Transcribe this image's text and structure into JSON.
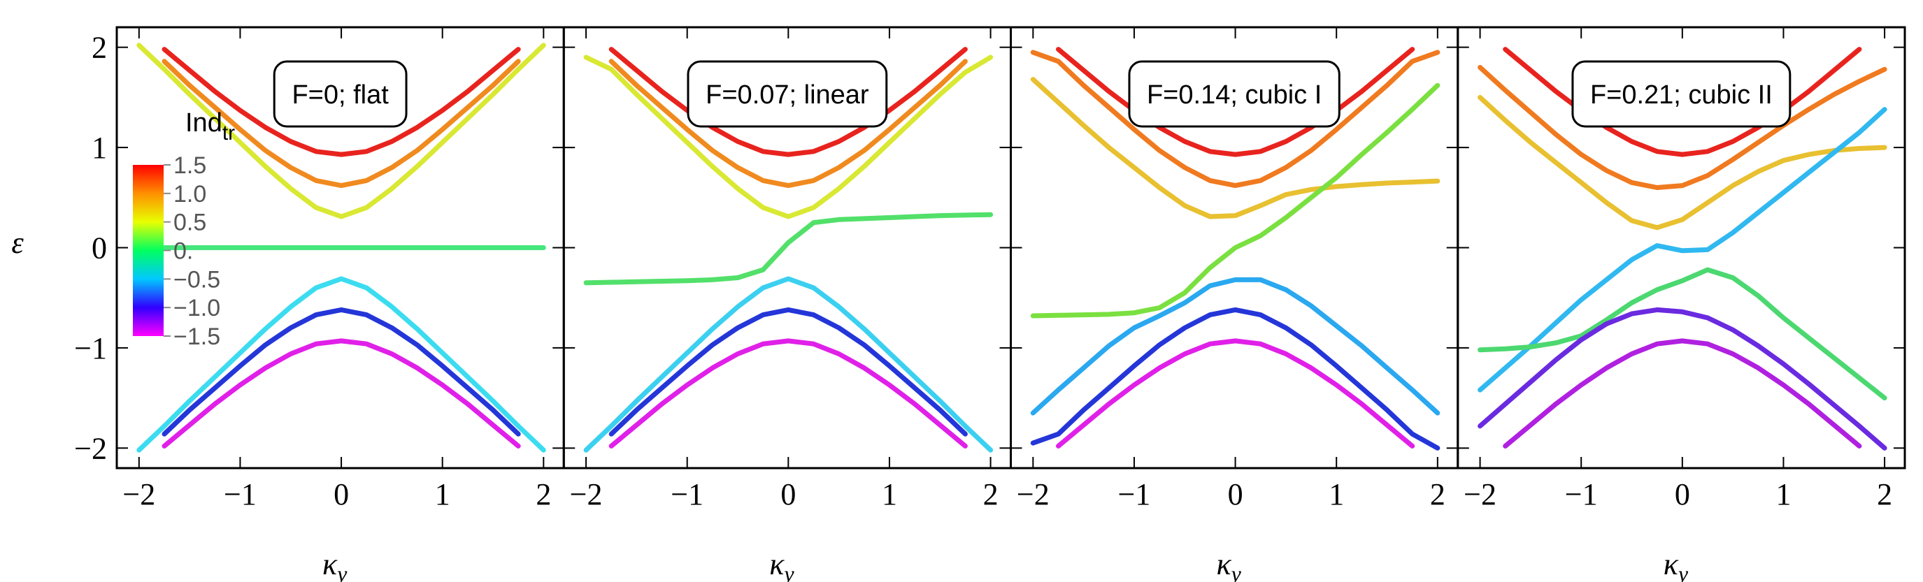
{
  "chart_data": [
    {
      "type": "line",
      "annotation": "F=0; flat",
      "xlabel": "κ",
      "xlabel_sub": "y",
      "ylabel": "ε",
      "xlim": [
        -2.22,
        2.2
      ],
      "ylim": [
        -2.2,
        2.2
      ],
      "xticks": [
        {
          "value": -2,
          "label": "−2"
        },
        {
          "value": -1,
          "label": "−1"
        },
        0,
        1,
        2
      ],
      "yticks": [
        {
          "value": -2,
          "label": "−2"
        },
        {
          "value": -1,
          "label": "−1"
        },
        0,
        1,
        2
      ],
      "ytick_labels": true,
      "x": [
        -2,
        -1.75,
        -1.5,
        -1.25,
        -1,
        -0.75,
        -0.5,
        -0.25,
        0,
        0.25,
        0.5,
        0.75,
        1,
        1.25,
        1.5,
        1.75,
        2
      ],
      "series": [
        {
          "color": "#e8231e",
          "values": [
            null,
            1.98,
            1.77,
            1.56,
            1.37,
            1.2,
            1.06,
            0.96,
            0.93,
            0.96,
            1.06,
            1.2,
            1.37,
            1.56,
            1.77,
            1.98,
            null
          ]
        },
        {
          "color": "#f08a1f",
          "values": [
            null,
            1.86,
            1.62,
            1.4,
            1.18,
            0.97,
            0.8,
            0.67,
            0.62,
            0.67,
            0.8,
            0.97,
            1.18,
            1.4,
            1.62,
            1.86,
            null
          ]
        },
        {
          "color": "#d9e832",
          "values": [
            2.02,
            1.78,
            1.53,
            1.29,
            1.05,
            0.81,
            0.59,
            0.4,
            0.31,
            0.4,
            0.59,
            0.81,
            1.05,
            1.29,
            1.53,
            1.78,
            2.02
          ]
        },
        {
          "color": "#46e67c",
          "values": [
            0,
            0,
            0,
            0,
            0,
            0,
            0,
            0,
            0,
            0,
            0,
            0,
            0,
            0,
            0,
            0,
            0
          ]
        },
        {
          "color": "#3cdcf0",
          "values": [
            -2.02,
            -1.78,
            -1.53,
            -1.29,
            -1.05,
            -0.81,
            -0.59,
            -0.4,
            -0.31,
            -0.4,
            -0.59,
            -0.81,
            -1.05,
            -1.29,
            -1.53,
            -1.78,
            -2.02
          ]
        },
        {
          "color": "#2436d8",
          "values": [
            null,
            -1.86,
            -1.62,
            -1.4,
            -1.18,
            -0.97,
            -0.8,
            -0.67,
            -0.62,
            -0.67,
            -0.8,
            -0.97,
            -1.18,
            -1.4,
            -1.62,
            -1.86,
            null
          ]
        },
        {
          "color": "#e020e8",
          "values": [
            null,
            -1.98,
            -1.77,
            -1.56,
            -1.37,
            -1.2,
            -1.06,
            -0.96,
            -0.93,
            -0.96,
            -1.06,
            -1.2,
            -1.37,
            -1.56,
            -1.77,
            -1.98,
            null
          ]
        }
      ],
      "colorbar": {
        "label": "Ind",
        "label_sub": "tr",
        "lim": [
          -1.5,
          1.5
        ],
        "colors": [
          "#ff00ff",
          "#3000ff",
          "#00c8ff",
          "#00ff60",
          "#e8ff00",
          "#ff9000",
          "#ff0000"
        ],
        "ticks": [
          {
            "value": 1.5,
            "label": "1.5"
          },
          {
            "value": 1,
            "label": "1.0"
          },
          {
            "value": 0.5,
            "label": "0.5"
          },
          {
            "value": 0,
            "label": "0."
          },
          {
            "value": -0.5,
            "label": "−0.5"
          },
          {
            "value": -1,
            "label": "−1.0"
          },
          {
            "value": -1.5,
            "label": "−1.5"
          }
        ]
      }
    },
    {
      "type": "line",
      "annotation": "F=0.07; linear",
      "xlabel": "κ",
      "xlabel_sub": "y",
      "xlim": [
        -2.22,
        2.2
      ],
      "ylim": [
        -2.2,
        2.2
      ],
      "xticks": [
        {
          "value": -2,
          "label": "−2"
        },
        {
          "value": -1,
          "label": "−1"
        },
        0,
        1,
        2
      ],
      "yticks": [
        -2,
        -1,
        0,
        1,
        2
      ],
      "ytick_labels": false,
      "x": [
        -2,
        -1.75,
        -1.5,
        -1.25,
        -1,
        -0.75,
        -0.5,
        -0.25,
        0,
        0.25,
        0.5,
        0.75,
        1,
        1.25,
        1.5,
        1.75,
        2
      ],
      "series": [
        {
          "color": "#e8231e",
          "values": [
            null,
            1.98,
            1.77,
            1.56,
            1.37,
            1.2,
            1.06,
            0.96,
            0.93,
            0.96,
            1.06,
            1.2,
            1.37,
            1.56,
            1.77,
            1.98,
            null
          ]
        },
        {
          "color": "#f08a1f",
          "values": [
            null,
            1.86,
            1.62,
            1.4,
            1.18,
            0.97,
            0.8,
            0.67,
            0.62,
            0.67,
            0.8,
            0.97,
            1.18,
            1.4,
            1.62,
            1.86,
            null
          ]
        },
        {
          "color": "#d9e832",
          "values": [
            1.9,
            1.78,
            1.53,
            1.29,
            1.05,
            0.81,
            0.59,
            0.4,
            0.31,
            0.4,
            0.59,
            0.81,
            1.05,
            1.29,
            1.53,
            1.75,
            1.9
          ]
        },
        {
          "color": "#52e06a",
          "values": [
            -0.35,
            -0.345,
            -0.34,
            -0.335,
            -0.33,
            -0.32,
            -0.3,
            -0.22,
            0.05,
            0.25,
            0.28,
            0.29,
            0.3,
            0.31,
            0.32,
            0.325,
            0.33
          ]
        },
        {
          "color": "#3cd0f0",
          "values": [
            -2.02,
            -1.78,
            -1.53,
            -1.29,
            -1.05,
            -0.81,
            -0.59,
            -0.4,
            -0.31,
            -0.4,
            -0.59,
            -0.81,
            -1.05,
            -1.29,
            -1.53,
            -1.78,
            -2.02
          ]
        },
        {
          "color": "#2436d8",
          "values": [
            null,
            -1.86,
            -1.62,
            -1.4,
            -1.18,
            -0.97,
            -0.8,
            -0.67,
            -0.62,
            -0.67,
            -0.8,
            -0.97,
            -1.18,
            -1.4,
            -1.62,
            -1.86,
            null
          ]
        },
        {
          "color": "#e020e8",
          "values": [
            null,
            -1.98,
            -1.77,
            -1.56,
            -1.37,
            -1.2,
            -1.06,
            -0.96,
            -0.93,
            -0.96,
            -1.06,
            -1.2,
            -1.37,
            -1.56,
            -1.77,
            -1.98,
            null
          ]
        }
      ]
    },
    {
      "type": "line",
      "annotation": "F=0.14; cubic I",
      "xlabel": "κ",
      "xlabel_sub": "y",
      "xlim": [
        -2.22,
        2.2
      ],
      "ylim": [
        -2.2,
        2.2
      ],
      "xticks": [
        {
          "value": -2,
          "label": "−2"
        },
        {
          "value": -1,
          "label": "−1"
        },
        0,
        1,
        2
      ],
      "yticks": [
        -2,
        -1,
        0,
        1,
        2
      ],
      "ytick_labels": false,
      "x": [
        -2,
        -1.75,
        -1.5,
        -1.25,
        -1,
        -0.75,
        -0.5,
        -0.25,
        0,
        0.25,
        0.5,
        0.75,
        1,
        1.25,
        1.5,
        1.75,
        2
      ],
      "series": [
        {
          "color": "#e8231e",
          "values": [
            null,
            1.98,
            1.77,
            1.56,
            1.37,
            1.2,
            1.06,
            0.96,
            0.93,
            0.96,
            1.06,
            1.2,
            1.37,
            1.56,
            1.77,
            1.98,
            null
          ]
        },
        {
          "color": "#f07a1f",
          "values": [
            1.95,
            1.86,
            1.62,
            1.4,
            1.18,
            0.97,
            0.8,
            0.67,
            0.62,
            0.67,
            0.8,
            0.97,
            1.18,
            1.4,
            1.62,
            1.86,
            1.95
          ]
        },
        {
          "color": "#e8c030",
          "values": [
            1.68,
            1.45,
            1.22,
            1.0,
            0.8,
            0.6,
            0.42,
            0.31,
            0.32,
            0.42,
            0.53,
            0.58,
            0.61,
            0.63,
            0.645,
            0.655,
            0.665
          ]
        },
        {
          "color": "#7ae040",
          "values": [
            -0.68,
            -0.675,
            -0.67,
            -0.665,
            -0.65,
            -0.6,
            -0.45,
            -0.2,
            0.0,
            0.12,
            0.3,
            0.5,
            0.7,
            0.93,
            1.15,
            1.38,
            1.62
          ]
        },
        {
          "color": "#2aa8f0",
          "values": [
            -1.65,
            -1.42,
            -1.2,
            -0.98,
            -0.8,
            -0.68,
            -0.55,
            -0.38,
            -0.32,
            -0.32,
            -0.42,
            -0.58,
            -0.78,
            -0.98,
            -1.2,
            -1.42,
            -1.65
          ]
        },
        {
          "color": "#2436d8",
          "values": [
            -1.95,
            -1.86,
            -1.62,
            -1.4,
            -1.18,
            -0.97,
            -0.8,
            -0.67,
            -0.62,
            -0.67,
            -0.8,
            -0.97,
            -1.18,
            -1.4,
            -1.62,
            -1.86,
            -2.0
          ]
        },
        {
          "color": "#e020e8",
          "values": [
            null,
            -1.98,
            -1.77,
            -1.56,
            -1.37,
            -1.2,
            -1.06,
            -0.96,
            -0.93,
            -0.96,
            -1.06,
            -1.2,
            -1.37,
            -1.56,
            -1.77,
            -1.98,
            null
          ]
        }
      ]
    },
    {
      "type": "line",
      "annotation": "F=0.21; cubic II",
      "xlabel": "κ",
      "xlabel_sub": "y",
      "xlim": [
        -2.22,
        2.2
      ],
      "ylim": [
        -2.2,
        2.2
      ],
      "xticks": [
        {
          "value": -2,
          "label": "−2"
        },
        {
          "value": -1,
          "label": "−1"
        },
        0,
        1,
        2
      ],
      "yticks": [
        -2,
        -1,
        0,
        1,
        2
      ],
      "ytick_labels": false,
      "x": [
        -2,
        -1.75,
        -1.5,
        -1.25,
        -1,
        -0.75,
        -0.5,
        -0.25,
        0,
        0.25,
        0.5,
        0.75,
        1,
        1.25,
        1.5,
        1.75,
        2
      ],
      "series": [
        {
          "color": "#e8231e",
          "values": [
            null,
            1.98,
            1.77,
            1.56,
            1.37,
            1.2,
            1.06,
            0.96,
            0.93,
            0.96,
            1.06,
            1.2,
            1.37,
            1.56,
            1.77,
            1.98,
            null
          ]
        },
        {
          "color": "#f07a1f",
          "values": [
            1.8,
            1.57,
            1.35,
            1.13,
            0.93,
            0.77,
            0.65,
            0.6,
            0.62,
            0.72,
            0.88,
            1.05,
            1.22,
            1.38,
            1.53,
            1.66,
            1.78
          ]
        },
        {
          "color": "#e8c030",
          "values": [
            1.5,
            1.27,
            1.05,
            0.85,
            0.65,
            0.45,
            0.27,
            0.2,
            0.28,
            0.45,
            0.62,
            0.76,
            0.87,
            0.93,
            0.97,
            0.99,
            1.0
          ]
        },
        {
          "color": "#30b8f0",
          "values": [
            -1.42,
            -1.2,
            -0.98,
            -0.75,
            -0.52,
            -0.32,
            -0.12,
            0.02,
            -0.03,
            -0.02,
            0.15,
            0.35,
            0.55,
            0.75,
            0.95,
            1.15,
            1.38
          ]
        },
        {
          "color": "#4cd870",
          "values": [
            -1.02,
            -1.01,
            -0.99,
            -0.95,
            -0.88,
            -0.72,
            -0.55,
            -0.42,
            -0.33,
            -0.22,
            -0.3,
            -0.48,
            -0.7,
            -0.9,
            -1.1,
            -1.3,
            -1.5
          ]
        },
        {
          "color": "#6a2ae0",
          "values": [
            -1.78,
            -1.56,
            -1.34,
            -1.12,
            -0.92,
            -0.76,
            -0.66,
            -0.62,
            -0.64,
            -0.7,
            -0.82,
            -0.98,
            -1.16,
            -1.36,
            -1.57,
            -1.78,
            -2.0
          ]
        },
        {
          "color": "#b020e0",
          "values": [
            null,
            -1.98,
            -1.77,
            -1.56,
            -1.37,
            -1.2,
            -1.06,
            -0.96,
            -0.93,
            -0.96,
            -1.06,
            -1.2,
            -1.37,
            -1.56,
            -1.77,
            -1.98,
            null
          ]
        }
      ]
    }
  ]
}
